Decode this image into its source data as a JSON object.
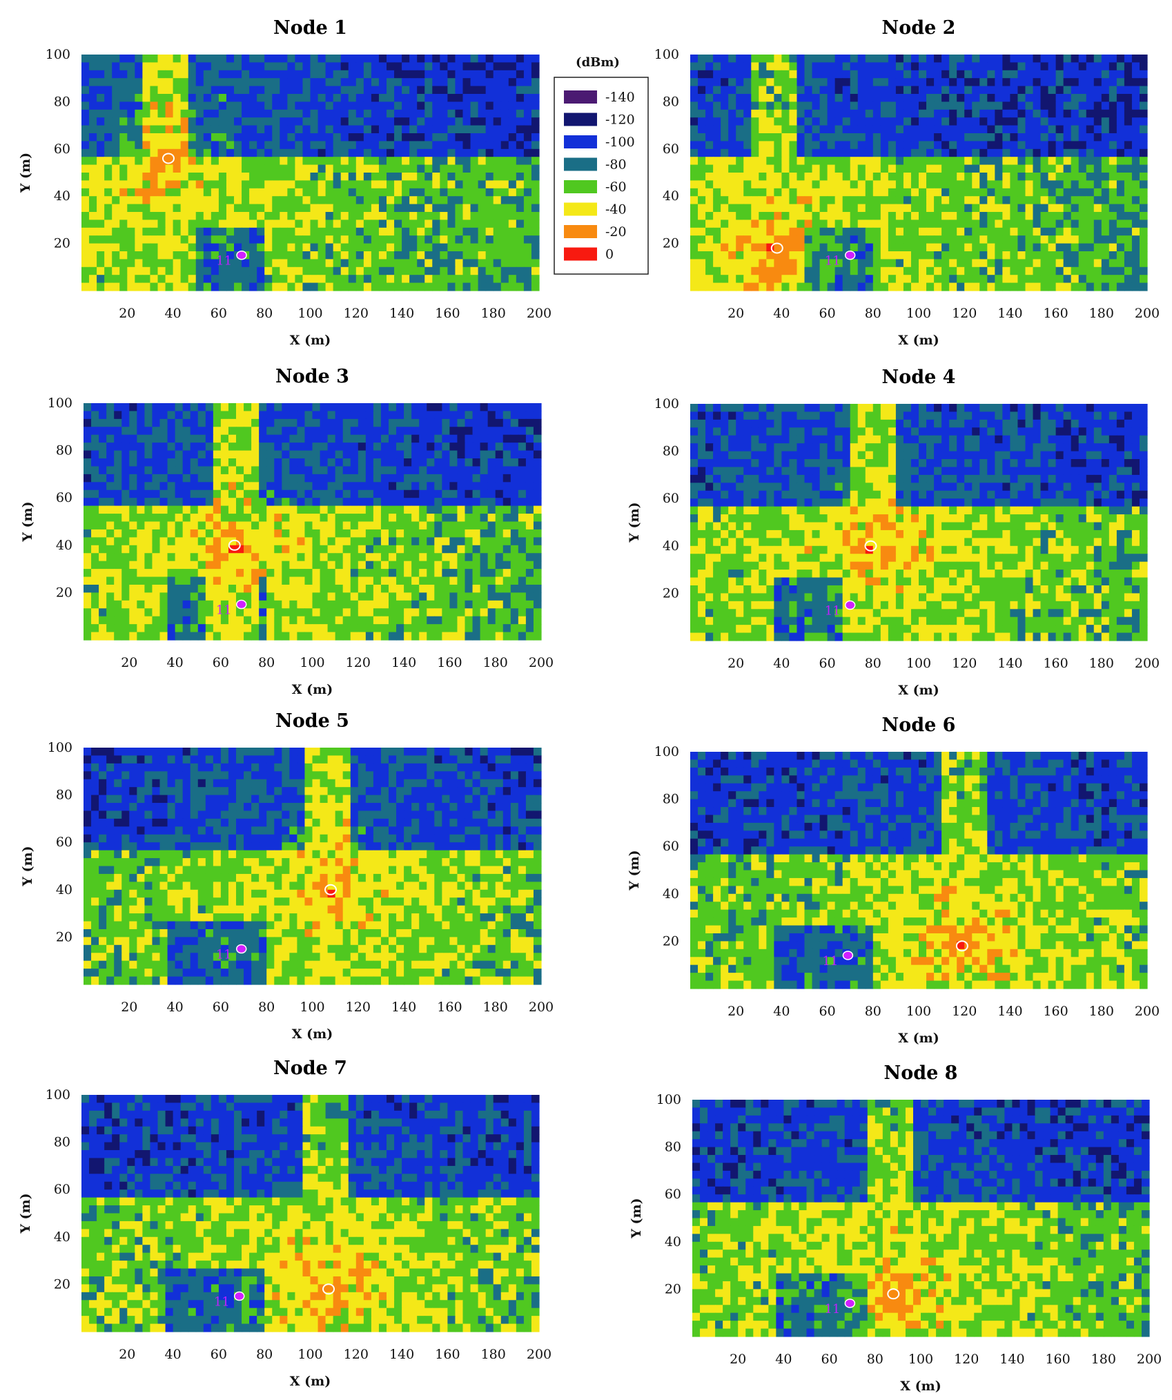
{
  "chart_data": [
    {
      "type": "heatmap",
      "title": "Node 1",
      "xlabel": "X (m)",
      "ylabel": "Y (m)",
      "xlim": [
        0,
        200
      ],
      "ylim": [
        0,
        100
      ],
      "xticks": [
        20,
        40,
        60,
        80,
        100,
        120,
        140,
        160,
        180,
        200
      ],
      "yticks": [
        20,
        40,
        60,
        80,
        100
      ],
      "transmitter": {
        "x": 38,
        "y": 56
      },
      "receiver": {
        "x": 70,
        "y": 15,
        "label": "11"
      }
    },
    {
      "type": "heatmap",
      "title": "Node 2",
      "xlabel": "X (m)",
      "ylabel": "Y (m)",
      "xlim": [
        0,
        200
      ],
      "ylim": [
        0,
        100
      ],
      "xticks": [
        20,
        40,
        60,
        80,
        100,
        120,
        140,
        160,
        180,
        200
      ],
      "yticks": [
        20,
        40,
        60,
        80,
        100
      ],
      "transmitter": {
        "x": 38,
        "y": 18
      },
      "receiver": {
        "x": 70,
        "y": 15,
        "label": "11"
      }
    },
    {
      "type": "heatmap",
      "title": "Node 3",
      "xlabel": "X (m)",
      "ylabel": "Y (m)",
      "xlim": [
        0,
        200
      ],
      "ylim": [
        0,
        100
      ],
      "xticks": [
        20,
        40,
        60,
        80,
        100,
        120,
        140,
        160,
        180,
        200
      ],
      "yticks": [
        20,
        40,
        60,
        80,
        100
      ],
      "transmitter": {
        "x": 66,
        "y": 40
      },
      "receiver": {
        "x": 69,
        "y": 15,
        "label": "11"
      }
    },
    {
      "type": "heatmap",
      "title": "Node 4",
      "xlabel": "X (m)",
      "ylabel": "Y (m)",
      "xlim": [
        0,
        200
      ],
      "ylim": [
        0,
        100
      ],
      "xticks": [
        20,
        40,
        60,
        80,
        100,
        120,
        140,
        160,
        180,
        200
      ],
      "yticks": [
        20,
        40,
        60,
        80,
        100
      ],
      "transmitter": {
        "x": 79,
        "y": 40
      },
      "receiver": {
        "x": 70,
        "y": 15,
        "label": "11"
      }
    },
    {
      "type": "heatmap",
      "title": "Node 5",
      "xlabel": "X (m)",
      "ylabel": "Y (m)",
      "xlim": [
        0,
        200
      ],
      "ylim": [
        0,
        100
      ],
      "xticks": [
        20,
        40,
        60,
        80,
        100,
        120,
        140,
        160,
        180,
        200
      ],
      "yticks": [
        20,
        40,
        60,
        80,
        100
      ],
      "transmitter": {
        "x": 108,
        "y": 40
      },
      "receiver": {
        "x": 69,
        "y": 15,
        "label": "11"
      }
    },
    {
      "type": "heatmap",
      "title": "Node 6",
      "xlabel": "X (m)",
      "ylabel": "Y (m)",
      "xlim": [
        0,
        200
      ],
      "ylim": [
        0,
        100
      ],
      "xticks": [
        20,
        40,
        60,
        80,
        100,
        120,
        140,
        160,
        180,
        200
      ],
      "yticks": [
        20,
        40,
        60,
        80,
        100
      ],
      "transmitter": {
        "x": 119,
        "y": 18
      },
      "receiver": {
        "x": 69,
        "y": 14,
        "label": "11"
      }
    },
    {
      "type": "heatmap",
      "title": "Node 7",
      "xlabel": "X (m)",
      "ylabel": "Y (m)",
      "xlim": [
        0,
        200
      ],
      "ylim": [
        0,
        100
      ],
      "xticks": [
        20,
        40,
        60,
        80,
        100,
        120,
        140,
        160,
        180,
        200
      ],
      "yticks": [
        20,
        40,
        60,
        80,
        100
      ],
      "transmitter": {
        "x": 108,
        "y": 18
      },
      "receiver": {
        "x": 69,
        "y": 15,
        "label": "11"
      }
    },
    {
      "type": "heatmap",
      "title": "Node 8",
      "xlabel": "X (m)",
      "ylabel": "Y (m)",
      "xlim": [
        0,
        200
      ],
      "ylim": [
        0,
        100
      ],
      "xticks": [
        20,
        40,
        60,
        80,
        100,
        120,
        140,
        160,
        180,
        200
      ],
      "yticks": [
        20,
        40,
        60,
        80,
        100
      ],
      "transmitter": {
        "x": 88,
        "y": 18
      },
      "receiver": {
        "x": 69,
        "y": 14,
        "label": "11"
      }
    }
  ],
  "legend": {
    "title": "(dBm)",
    "entries": [
      {
        "label": "-140",
        "value": -140,
        "color": "#4b1a72"
      },
      {
        "label": "-120",
        "value": -120,
        "color": "#121670"
      },
      {
        "label": "-100",
        "value": -100,
        "color": "#1230d8"
      },
      {
        "label": "-80",
        "value": -80,
        "color": "#1a6e86"
      },
      {
        "label": "-60",
        "value": -60,
        "color": "#50c820"
      },
      {
        "label": "-40",
        "value": -40,
        "color": "#f4e818"
      },
      {
        "label": "-20",
        "value": -20,
        "color": "#f88a10"
      },
      {
        "label": "0",
        "value": 0,
        "color": "#f81a10"
      }
    ]
  }
}
